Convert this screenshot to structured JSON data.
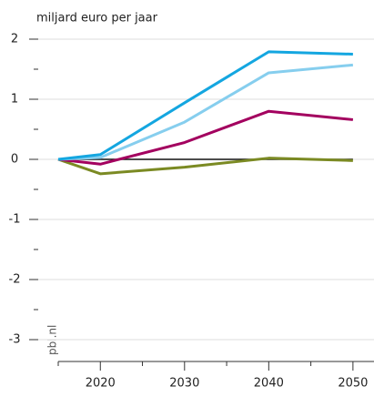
{
  "chart_data": {
    "type": "line",
    "y_axis_label": "miljard euro per jaar",
    "source": "pbl.nl",
    "x": [
      2015,
      2020,
      2030,
      2040,
      2050
    ],
    "xlim": [
      2015,
      2052.5
    ],
    "xticks": [
      2020,
      2030,
      2040,
      2050
    ],
    "ylim": [
      -3,
      2
    ],
    "yticks": [
      -3,
      -2,
      -1,
      0,
      1,
      2
    ],
    "grid": true,
    "series": [
      {
        "color": "#111111",
        "values": [
          0,
          0,
          0,
          0,
          0
        ]
      },
      {
        "color": "#7b8a23",
        "values": [
          0,
          -0.24,
          -0.13,
          0.02,
          -0.02
        ]
      },
      {
        "color": "#a3005f",
        "values": [
          0,
          -0.08,
          0.28,
          0.8,
          0.66
        ]
      },
      {
        "color": "#86ceee",
        "values": [
          0,
          0.03,
          0.62,
          1.44,
          1.57
        ]
      },
      {
        "color": "#14a6e0",
        "values": [
          0,
          0.08,
          0.94,
          1.79,
          1.75
        ]
      }
    ]
  }
}
